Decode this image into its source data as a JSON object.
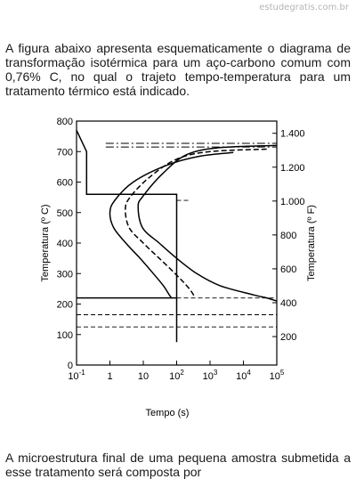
{
  "watermark": "estudegratis.com.br",
  "intro_text": "A figura abaixo apresenta esquematicamente o diagrama de transformação isotérmica para um aço-carbono comum com 0,76% C, no qual o trajeto tempo-temperatura para um tratamento térmico está indicado.",
  "outro_text": "A microestrutura final de uma pequena amostra submetida a esse tratamento será composta por",
  "chart_data": {
    "type": "line",
    "x_scale": "log",
    "xlabel": "Tempo (s)",
    "ylabel": "Temperatura (º C)",
    "y2label": "Temperatura (º F)",
    "xlim": [
      0.1,
      100000
    ],
    "ylim": [
      0,
      800
    ],
    "x_tick_labels": [
      {
        "value": 0.1,
        "base": "10",
        "exp": "-1"
      },
      {
        "value": 1,
        "base": "1",
        "exp": ""
      },
      {
        "value": 10,
        "base": "10",
        "exp": ""
      },
      {
        "value": 100,
        "base": "10",
        "exp": "2"
      },
      {
        "value": 1000,
        "base": "10",
        "exp": "3"
      },
      {
        "value": 10000,
        "base": "10",
        "exp": "4"
      },
      {
        "value": 100000,
        "base": "10",
        "exp": "5"
      }
    ],
    "y_ticks": [
      0,
      100,
      200,
      300,
      400,
      500,
      600,
      700,
      800
    ],
    "y_tick_labels": [
      "0",
      "100",
      "200",
      "300",
      "400",
      "500",
      "600",
      "700",
      "800"
    ],
    "y2_ticks_F": [
      200,
      400,
      600,
      800,
      1000,
      1200,
      1400
    ],
    "y2_tick_labels": [
      "200",
      "400",
      "600",
      "800",
      "1.000",
      "1.200",
      "1.400"
    ],
    "dashdot_lines": [
      {
        "y": 727
      },
      {
        "y": 715
      }
    ],
    "dashed_lines": [
      {
        "y": 540,
        "x_from": 100,
        "x_to": 250
      },
      {
        "y": 220,
        "x_from": 100,
        "x_to": 100000
      },
      {
        "y": 165,
        "x_from": 0.1,
        "x_to": 100000
      },
      {
        "y": 125,
        "x_from": 0.1,
        "x_to": 100000
      }
    ],
    "curves": [
      {
        "style": "solid",
        "points": [
          [
            5000,
            697
          ],
          [
            500,
            685
          ],
          [
            50,
            655
          ],
          [
            5,
            600
          ],
          [
            1.4,
            540
          ],
          [
            1,
            500
          ],
          [
            1.3,
            450
          ],
          [
            3,
            400
          ],
          [
            8,
            350
          ],
          [
            20,
            300
          ],
          [
            40,
            260
          ],
          [
            60,
            230
          ],
          [
            70,
            220
          ]
        ]
      },
      {
        "style": "dashed",
        "points": [
          [
            50000,
            708
          ],
          [
            1000,
            700
          ],
          [
            100,
            675
          ],
          [
            15,
            615
          ],
          [
            4,
            550
          ],
          [
            2.9,
            510
          ],
          [
            3.8,
            450
          ],
          [
            10,
            400
          ],
          [
            30,
            350
          ],
          [
            90,
            300
          ],
          [
            200,
            260
          ],
          [
            300,
            235
          ],
          [
            350,
            220
          ]
        ]
      },
      {
        "style": "solid",
        "points": [
          [
            100000,
            720
          ],
          [
            2000,
            713
          ],
          [
            200,
            690
          ],
          [
            40,
            630
          ],
          [
            10,
            555
          ],
          [
            7,
            520
          ],
          [
            9.5,
            450
          ],
          [
            30,
            400
          ],
          [
            100,
            350
          ],
          [
            400,
            300
          ],
          [
            2000,
            260
          ],
          [
            20000,
            230
          ],
          [
            50000,
            220
          ],
          [
            100000,
            210
          ]
        ]
      }
    ],
    "path": {
      "style": "solid",
      "points": [
        [
          0.1,
          770
        ],
        [
          0.2,
          700
        ],
        [
          0.2,
          560
        ],
        [
          100,
          560
        ],
        [
          100,
          75
        ]
      ]
    },
    "hold_line": {
      "style": "solid",
      "y": 220,
      "x_from": 0.1,
      "x_to": 100
    }
  }
}
